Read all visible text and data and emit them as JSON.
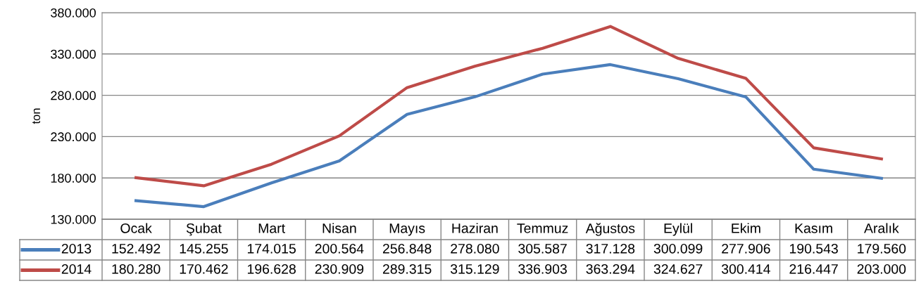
{
  "chart_data": {
    "type": "line",
    "ylabel": "ton",
    "categories": [
      "Ocak",
      "Şubat",
      "Mart",
      "Nisan",
      "Mayıs",
      "Haziran",
      "Temmuz",
      "Ağustos",
      "Eylül",
      "Ekim",
      "Kasım",
      "Aralık"
    ],
    "series": [
      {
        "name": "2013",
        "color": "#4a7ebb",
        "values": [
          152492,
          145255,
          174015,
          200564,
          256848,
          278080,
          305587,
          317128,
          300099,
          277906,
          190543,
          179560
        ],
        "value_labels": [
          "152.492",
          "145.255",
          "174.015",
          "200.564",
          "256.848",
          "278.080",
          "305.587",
          "317.128",
          "300.099",
          "277.906",
          "190.543",
          "179.560"
        ]
      },
      {
        "name": "2014",
        "color": "#be4b48",
        "values": [
          180280,
          170462,
          196628,
          230909,
          289315,
          315129,
          336903,
          363294,
          324627,
          300414,
          216447,
          203000
        ],
        "value_labels": [
          "180.280",
          "170.462",
          "196.628",
          "230.909",
          "289.315",
          "315.129",
          "336.903",
          "363.294",
          "324.627",
          "300.414",
          "216.447",
          "203.000"
        ]
      }
    ],
    "ylim": [
      130000,
      380000
    ],
    "yticks": [
      {
        "value": 130000,
        "label": "130.000"
      },
      {
        "value": 180000,
        "label": "180.000"
      },
      {
        "value": 230000,
        "label": "230.000"
      },
      {
        "value": 280000,
        "label": "280.000"
      },
      {
        "value": 330000,
        "label": "330.000"
      },
      {
        "value": 380000,
        "label": "380.000"
      }
    ],
    "grid": "y",
    "legend": "bottom",
    "marker": "none",
    "line_style": "solid"
  }
}
